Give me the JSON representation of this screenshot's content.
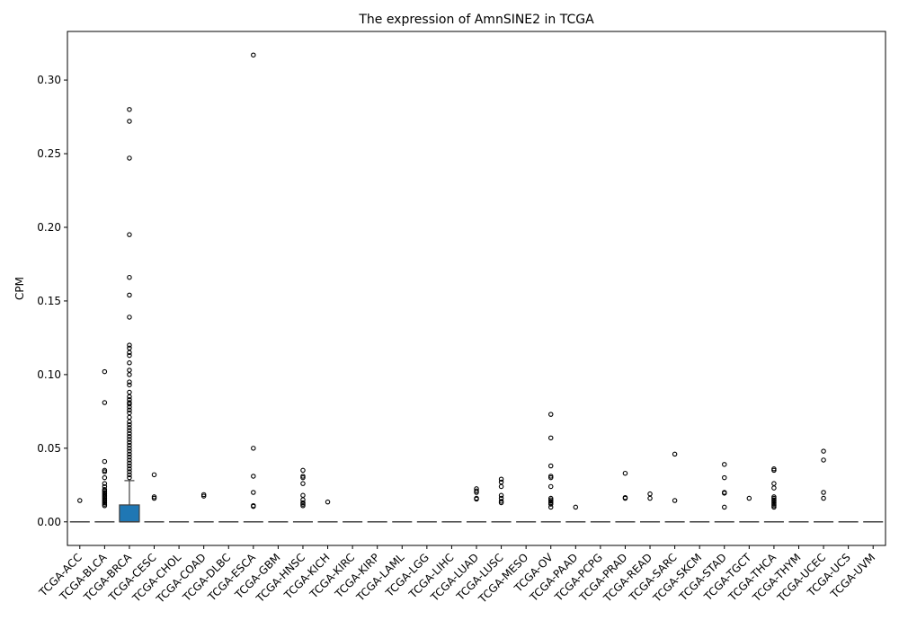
{
  "chart_data": {
    "type": "box",
    "title": "The expression of AmnSINE2 in TCGA",
    "xlabel": "",
    "ylabel": "CPM",
    "ylim": [
      -0.016,
      0.333
    ],
    "yticks": [
      0.0,
      0.05,
      0.1,
      0.15,
      0.2,
      0.25,
      0.3
    ],
    "ytick_labels": [
      "0.00",
      "0.05",
      "0.10",
      "0.15",
      "0.20",
      "0.25",
      "0.30"
    ],
    "grid": false,
    "box_color": "#1f77b4",
    "categories": [
      "TCGA-ACC",
      "TCGA-BLCA",
      "TCGA-BRCA",
      "TCGA-CESC",
      "TCGA-CHOL",
      "TCGA-COAD",
      "TCGA-DLBC",
      "TCGA-ESCA",
      "TCGA-GBM",
      "TCGA-HNSC",
      "TCGA-KICH",
      "TCGA-KIRC",
      "TCGA-KIRP",
      "TCGA-LAML",
      "TCGA-LGG",
      "TCGA-LIHC",
      "TCGA-LUAD",
      "TCGA-LUSC",
      "TCGA-MESO",
      "TCGA-OV",
      "TCGA-PAAD",
      "TCGA-PCPG",
      "TCGA-PRAD",
      "TCGA-READ",
      "TCGA-SARC",
      "TCGA-SKCM",
      "TCGA-STAD",
      "TCGA-TGCT",
      "TCGA-THCA",
      "TCGA-THYM",
      "TCGA-UCEC",
      "TCGA-UCS",
      "TCGA-UVM"
    ],
    "boxes": [
      {
        "q1": 0,
        "median": 0,
        "q3": 0,
        "whisker_low": 0,
        "whisker_high": 0,
        "outliers": [
          0.0145
        ]
      },
      {
        "q1": 0,
        "median": 0,
        "q3": 0,
        "whisker_low": 0,
        "whisker_high": 0,
        "outliers": [
          0.102,
          0.081,
          0.041,
          0.035,
          0.034,
          0.03,
          0.026,
          0.024,
          0.022,
          0.021,
          0.02,
          0.019,
          0.018,
          0.017,
          0.016,
          0.015,
          0.014,
          0.013,
          0.012,
          0.011
        ]
      },
      {
        "q1": 0,
        "median": 0,
        "q3": 0.0115,
        "whisker_low": 0,
        "whisker_high": 0.028,
        "outliers": [
          0.28,
          0.272,
          0.247,
          0.195,
          0.166,
          0.154,
          0.139,
          0.12,
          0.118,
          0.115,
          0.113,
          0.108,
          0.103,
          0.1,
          0.095,
          0.093,
          0.088,
          0.085,
          0.083,
          0.081,
          0.08,
          0.078,
          0.076,
          0.074,
          0.071,
          0.068,
          0.066,
          0.064,
          0.062,
          0.06,
          0.058,
          0.056,
          0.054,
          0.052,
          0.05,
          0.048,
          0.046,
          0.044,
          0.042,
          0.04,
          0.038,
          0.036,
          0.034,
          0.032,
          0.03
        ]
      },
      {
        "q1": 0,
        "median": 0,
        "q3": 0,
        "whisker_low": 0,
        "whisker_high": 0,
        "outliers": [
          0.032,
          0.017,
          0.016
        ]
      },
      {
        "q1": 0,
        "median": 0,
        "q3": 0,
        "whisker_low": 0,
        "whisker_high": 0,
        "outliers": []
      },
      {
        "q1": 0,
        "median": 0,
        "q3": 0,
        "whisker_low": 0,
        "whisker_high": 0,
        "outliers": [
          0.0185,
          0.0175
        ]
      },
      {
        "q1": 0,
        "median": 0,
        "q3": 0,
        "whisker_low": 0,
        "whisker_high": 0,
        "outliers": []
      },
      {
        "q1": 0,
        "median": 0,
        "q3": 0,
        "whisker_low": 0,
        "whisker_high": 0,
        "outliers": [
          0.317,
          0.05,
          0.031,
          0.02,
          0.011,
          0.0105
        ]
      },
      {
        "q1": 0,
        "median": 0,
        "q3": 0,
        "whisker_low": 0,
        "whisker_high": 0,
        "outliers": []
      },
      {
        "q1": 0,
        "median": 0,
        "q3": 0,
        "whisker_low": 0,
        "whisker_high": 0,
        "outliers": [
          0.035,
          0.031,
          0.03,
          0.026,
          0.018,
          0.015,
          0.013,
          0.012,
          0.011
        ]
      },
      {
        "q1": 0,
        "median": 0,
        "q3": 0,
        "whisker_low": 0,
        "whisker_high": 0,
        "outliers": [
          0.0135
        ]
      },
      {
        "q1": 0,
        "median": 0,
        "q3": 0,
        "whisker_low": 0,
        "whisker_high": 0,
        "outliers": []
      },
      {
        "q1": 0,
        "median": 0,
        "q3": 0,
        "whisker_low": 0,
        "whisker_high": 0,
        "outliers": []
      },
      {
        "q1": 0,
        "median": 0,
        "q3": 0,
        "whisker_low": 0,
        "whisker_high": 0,
        "outliers": []
      },
      {
        "q1": 0,
        "median": 0,
        "q3": 0,
        "whisker_low": 0,
        "whisker_high": 0,
        "outliers": []
      },
      {
        "q1": 0,
        "median": 0,
        "q3": 0,
        "whisker_low": 0,
        "whisker_high": 0,
        "outliers": []
      },
      {
        "q1": 0,
        "median": 0,
        "q3": 0,
        "whisker_low": 0,
        "whisker_high": 0,
        "outliers": [
          0.0225,
          0.021,
          0.02,
          0.016,
          0.0155
        ]
      },
      {
        "q1": 0,
        "median": 0,
        "q3": 0,
        "whisker_low": 0,
        "whisker_high": 0,
        "outliers": [
          0.029,
          0.027,
          0.024,
          0.018,
          0.016,
          0.014,
          0.013
        ]
      },
      {
        "q1": 0,
        "median": 0,
        "q3": 0,
        "whisker_low": 0,
        "whisker_high": 0,
        "outliers": []
      },
      {
        "q1": 0,
        "median": 0,
        "q3": 0,
        "whisker_low": 0,
        "whisker_high": 0,
        "outliers": [
          0.073,
          0.057,
          0.038,
          0.031,
          0.03,
          0.024,
          0.016,
          0.015,
          0.014,
          0.013,
          0.012,
          0.01
        ]
      },
      {
        "q1": 0,
        "median": 0,
        "q3": 0,
        "whisker_low": 0,
        "whisker_high": 0,
        "outliers": [
          0.01
        ]
      },
      {
        "q1": 0,
        "median": 0,
        "q3": 0,
        "whisker_low": 0,
        "whisker_high": 0,
        "outliers": []
      },
      {
        "q1": 0,
        "median": 0,
        "q3": 0,
        "whisker_low": 0,
        "whisker_high": 0,
        "outliers": [
          0.033,
          0.0165,
          0.016
        ]
      },
      {
        "q1": 0,
        "median": 0,
        "q3": 0,
        "whisker_low": 0,
        "whisker_high": 0,
        "outliers": [
          0.019,
          0.016
        ]
      },
      {
        "q1": 0,
        "median": 0,
        "q3": 0,
        "whisker_low": 0,
        "whisker_high": 0,
        "outliers": [
          0.046,
          0.0145
        ]
      },
      {
        "q1": 0,
        "median": 0,
        "q3": 0,
        "whisker_low": 0,
        "whisker_high": 0,
        "outliers": []
      },
      {
        "q1": 0,
        "median": 0,
        "q3": 0,
        "whisker_low": 0,
        "whisker_high": 0,
        "outliers": [
          0.039,
          0.03,
          0.02,
          0.0195,
          0.01
        ]
      },
      {
        "q1": 0,
        "median": 0,
        "q3": 0,
        "whisker_low": 0,
        "whisker_high": 0,
        "outliers": [
          0.016
        ]
      },
      {
        "q1": 0,
        "median": 0,
        "q3": 0,
        "whisker_low": 0,
        "whisker_high": 0,
        "outliers": [
          0.036,
          0.035,
          0.026,
          0.023,
          0.017,
          0.016,
          0.015,
          0.014,
          0.013,
          0.012,
          0.011,
          0.01
        ]
      },
      {
        "q1": 0,
        "median": 0,
        "q3": 0,
        "whisker_low": 0,
        "whisker_high": 0,
        "outliers": []
      },
      {
        "q1": 0,
        "median": 0,
        "q3": 0,
        "whisker_low": 0,
        "whisker_high": 0,
        "outliers": [
          0.048,
          0.042,
          0.02,
          0.016
        ]
      },
      {
        "q1": 0,
        "median": 0,
        "q3": 0,
        "whisker_low": 0,
        "whisker_high": 0,
        "outliers": []
      },
      {
        "q1": 0,
        "median": 0,
        "q3": 0,
        "whisker_low": 0,
        "whisker_high": 0,
        "outliers": []
      }
    ]
  }
}
